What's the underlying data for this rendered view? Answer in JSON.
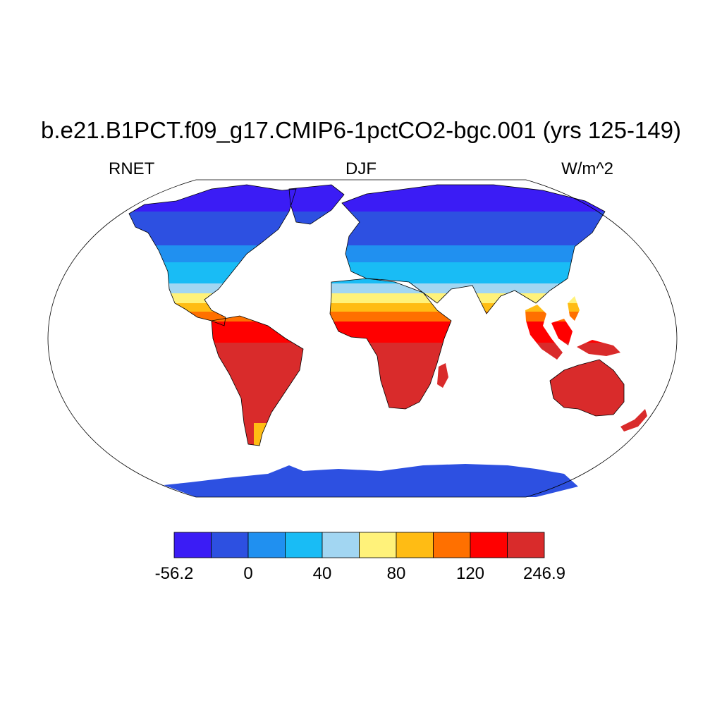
{
  "title": "b.e21.B1PCT.f09_g17.CMIP6-1pctCO2-bgc.001 (yrs 125-149)",
  "variable": "RNET",
  "season": "DJF",
  "units": "W/m^2",
  "colorbar": {
    "colors": [
      "#3b1cf5",
      "#2d50e1",
      "#2090f0",
      "#19bcf5",
      "#a2d6f2",
      "#fff27a",
      "#ffbc14",
      "#ff7000",
      "#ff0000",
      "#d92b2b"
    ],
    "labels": [
      {
        "text": "-56.2",
        "boundary": 0
      },
      {
        "text": "0",
        "boundary": 2
      },
      {
        "text": "40",
        "boundary": 4
      },
      {
        "text": "80",
        "boundary": 6
      },
      {
        "text": "120",
        "boundary": 8
      },
      {
        "text": "246.9",
        "boundary": 10
      }
    ]
  },
  "map": {
    "projection": "robinson",
    "ocean_color": "#ffffff",
    "coastline_color": "#000000"
  }
}
